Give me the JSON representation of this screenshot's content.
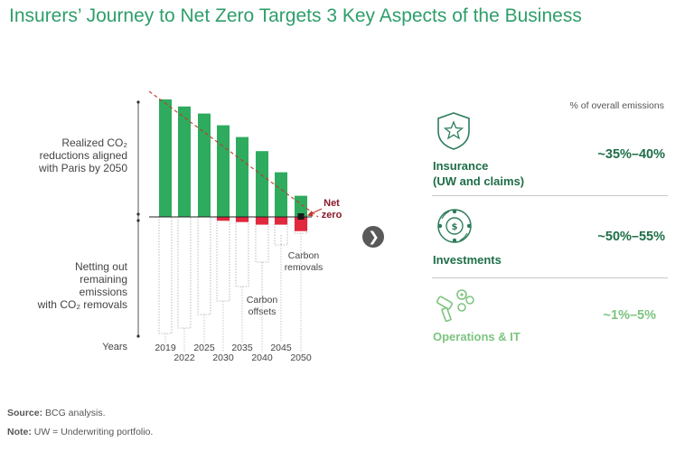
{
  "title": "Insurers’ Journey to Net Zero Targets 3 Key Aspects of the Business",
  "left_labels": {
    "realized": [
      "Realized CO₂",
      "reductions aligned",
      "with Paris by 2050"
    ],
    "netting": [
      "Netting out",
      "remaining emissions",
      "with CO₂ removals"
    ],
    "years": "Years"
  },
  "chart_data": {
    "type": "bar",
    "categories": [
      "2019",
      "2022",
      "2025",
      "2030",
      "2035",
      "2040",
      "2045",
      "2050"
    ],
    "series": [
      {
        "values": [
          100,
          94,
          88,
          78,
          68,
          56,
          38,
          18
        ]
      },
      {
        "values": [
          0,
          0,
          0,
          -6,
          -8,
          -12,
          -12,
          -22
        ]
      }
    ],
    "annotations": {
      "net_zero": [
        "Net",
        "zero"
      ],
      "carbon_offsets": [
        "Carbon",
        "offsets"
      ],
      "carbon_removals": [
        "Carbon",
        "removals"
      ]
    },
    "colors": {
      "reductions": "#2eab5e",
      "netting": "#e0283e",
      "net_zero_marker": "#1a1a1a",
      "trend": "#c0392b"
    }
  },
  "arrow_icon": "chevron-right-icon",
  "right_panel": {
    "header": "% of overall emissions",
    "rows": [
      {
        "name_line1": "Insurance",
        "name_line2": "(UW and claims)",
        "value": "~35%–40%",
        "color": "#1e6e47",
        "icon": "shield-star-icon"
      },
      {
        "name_line1": "Investments",
        "value": "~50%–55%",
        "color": "#1e6e47",
        "icon": "globe-money-icon"
      },
      {
        "name_line1": "Operations & IT",
        "value": "~1%–5%",
        "color": "#7cc47f",
        "icon": "gears-icon"
      }
    ]
  },
  "footer": {
    "source_label": "Source:",
    "source_text": " BCG analysis.",
    "note_label": "Note:",
    "note_text": " UW = Underwriting portfolio."
  }
}
